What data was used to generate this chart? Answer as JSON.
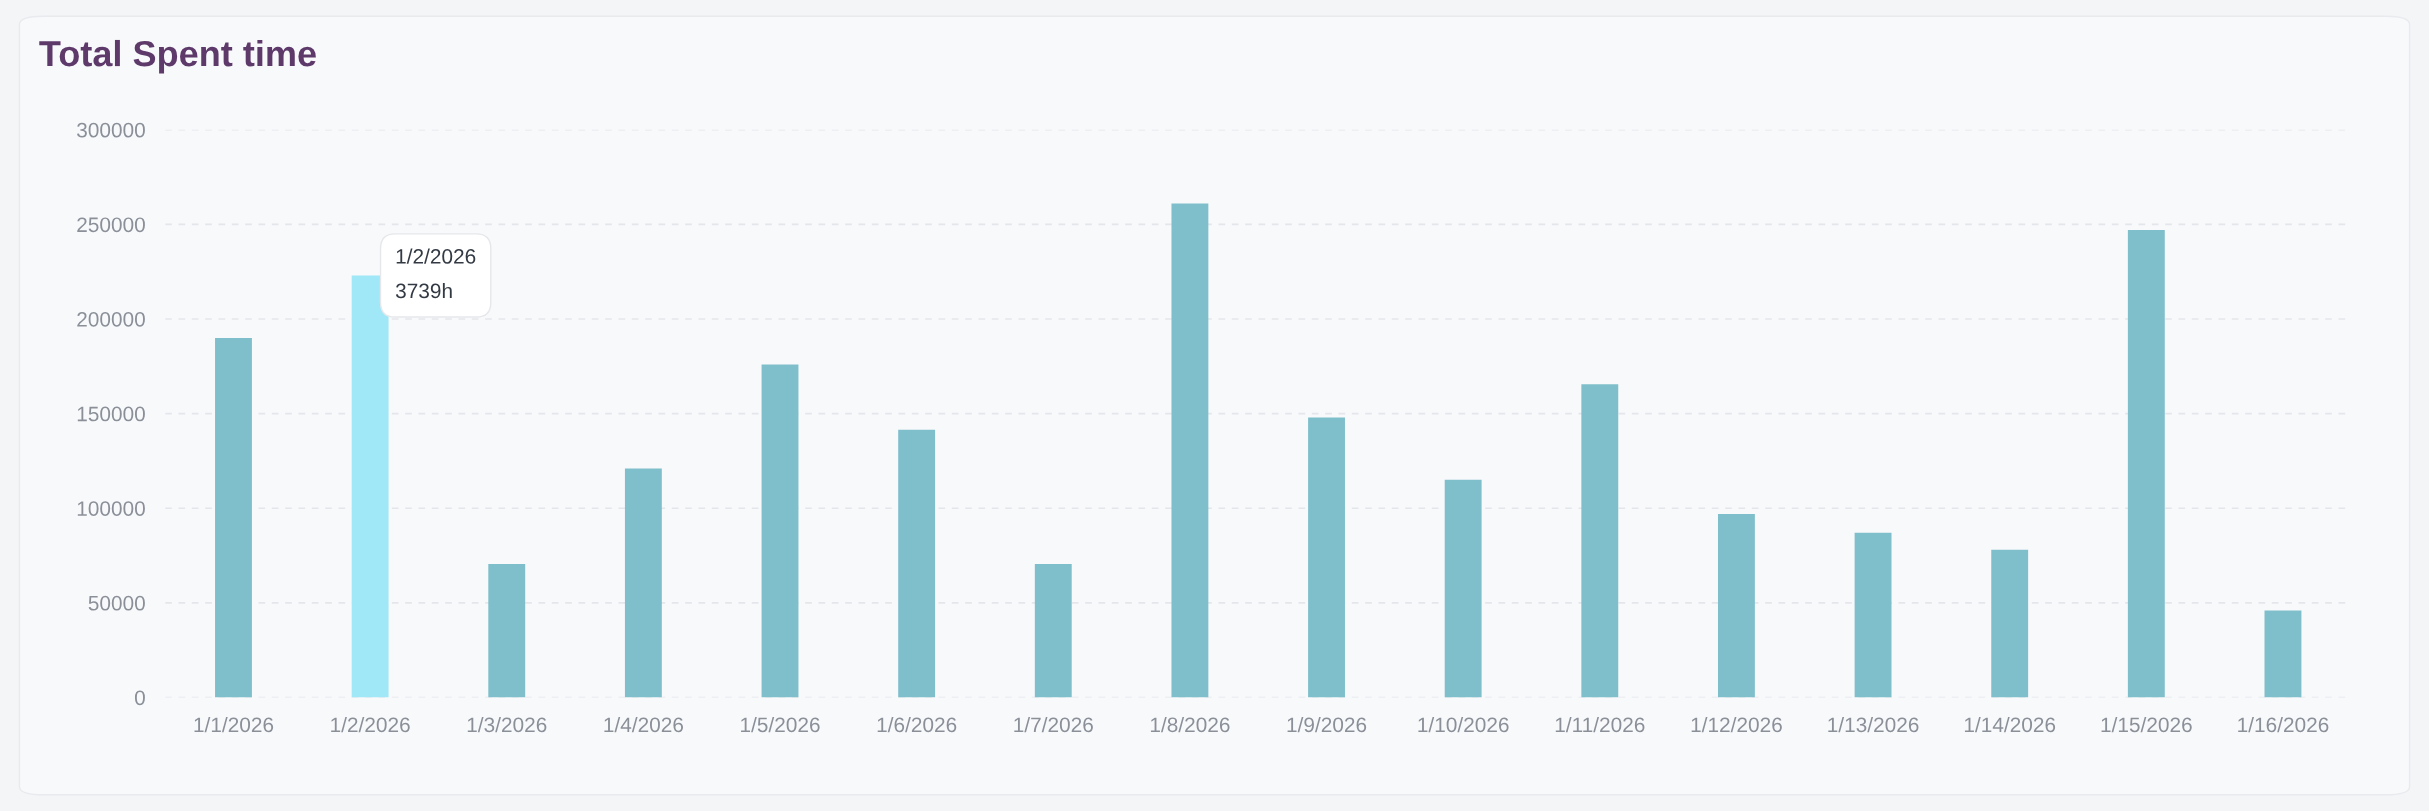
{
  "chart_data": {
    "type": "bar",
    "title": "Total Spent time",
    "categories": [
      "1/1/2026",
      "1/2/2026",
      "1/3/2026",
      "1/4/2026",
      "1/5/2026",
      "1/6/2026",
      "1/7/2026",
      "1/8/2026",
      "1/9/2026",
      "1/10/2026",
      "1/11/2026",
      "1/12/2026",
      "1/13/2026",
      "1/14/2026",
      "1/15/2026",
      "1/16/2026"
    ],
    "values": [
      190000,
      223000,
      70500,
      121000,
      176000,
      141500,
      70500,
      261000,
      148000,
      115000,
      165500,
      97000,
      87000,
      78000,
      247000,
      46000
    ],
    "colors": [
      "#7fbfcc",
      "#a0e8f7",
      "#7fbfcc",
      "#7fbfcc",
      "#7fbfcc",
      "#7fbfcc",
      "#7fbfcc",
      "#7fbfcc",
      "#7fbfcc",
      "#7fbfcc",
      "#7fbfcc",
      "#7fbfcc",
      "#7fbfcc",
      "#7fbfcc",
      "#7fbfcc",
      "#7fbfcc"
    ],
    "ylim": [
      0,
      300000
    ],
    "yticks": [
      0,
      50000,
      100000,
      150000,
      200000,
      250000,
      300000
    ],
    "grid": "y",
    "annotations": [
      {
        "text": "1/2/2026\n3739h",
        "x": "1/2/2026",
        "y": 223000
      }
    ]
  }
}
